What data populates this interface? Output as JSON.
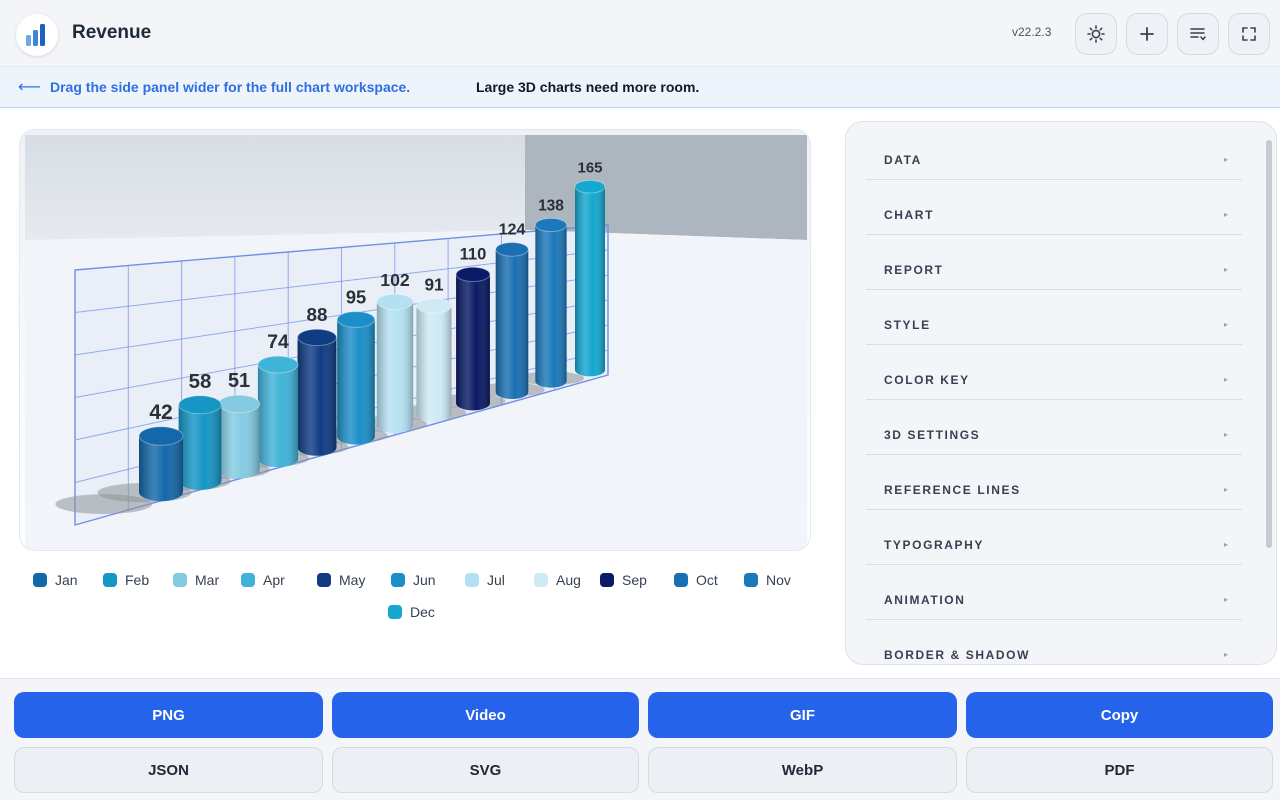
{
  "header": {
    "title": "Revenue",
    "version": "v22.2.3",
    "icons": [
      "sun-icon",
      "plus-icon",
      "list-sort-icon",
      "fullscreen-icon"
    ]
  },
  "banner": {
    "arrow": "⟵",
    "link_text": "Drag the side panel wider for the full chart workspace.",
    "text": "Large 3D charts need more room."
  },
  "chart_data": {
    "type": "bar",
    "categories": [
      "Jan",
      "Feb",
      "Mar",
      "Apr",
      "May",
      "Jun",
      "Jul",
      "Aug",
      "Sep",
      "Oct",
      "Nov",
      "Dec"
    ],
    "values": [
      42,
      58,
      51,
      74,
      88,
      95,
      102,
      91,
      110,
      124,
      138,
      165
    ],
    "colors": [
      "#1368aa",
      "#1596c4",
      "#84cbe2",
      "#40b3d8",
      "#0f3c83",
      "#1c8fc9",
      "#b4e1f2",
      "#cfeaf5",
      "#0a1a66",
      "#1a6fb2",
      "#1b78ba",
      "#14a7cf"
    ],
    "legend": "bottom",
    "style": "3d-cylinder"
  },
  "side_panel": {
    "items": [
      "DATA",
      "CHART",
      "REPORT",
      "STYLE",
      "COLOR KEY",
      "3D SETTINGS",
      "REFERENCE LINES",
      "TYPOGRAPHY",
      "ANIMATION",
      "BORDER & SHADOW"
    ],
    "chevron": "▸"
  },
  "footer": {
    "primary": [
      "PNG",
      "Video",
      "GIF",
      "Copy"
    ],
    "secondary": [
      "JSON",
      "SVG",
      "WebP",
      "PDF"
    ]
  }
}
